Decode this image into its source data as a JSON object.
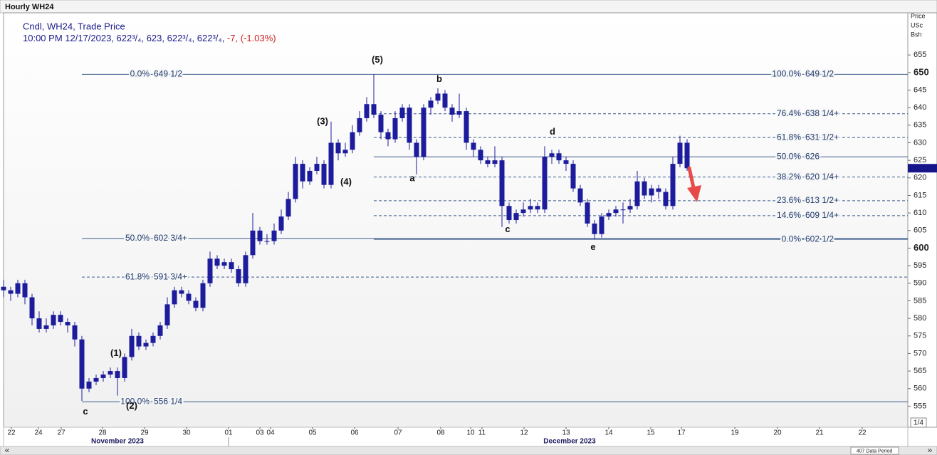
{
  "chart_data": {
    "type": "candlestick",
    "title": "Hourly WH24",
    "legend_line1": "Cndl, WH24, Trade Price",
    "legend_line2": "10:00 PM 12/17/2023, 622³/₄, 623, 622³/₄, 622³/₄, ",
    "legend_change": "-7, (-1.03%)",
    "axis_title": [
      "Price",
      "USc",
      "Bsh"
    ],
    "color": "#1c1c9c",
    "xlim": [
      0,
      254
    ],
    "ylim": [
      549,
      667
    ],
    "yticks": [
      555,
      560,
      565,
      570,
      575,
      580,
      585,
      590,
      595,
      600,
      605,
      610,
      615,
      620,
      625,
      630,
      635,
      640,
      645,
      650,
      655
    ],
    "bold_tick_step": 50,
    "xticks": [
      {
        "value": 2.2,
        "label": "22"
      },
      {
        "value": 9.8,
        "label": "24"
      },
      {
        "value": 16.2,
        "label": "27"
      },
      {
        "value": 27.8,
        "label": "28"
      },
      {
        "value": 39.6,
        "label": "29"
      },
      {
        "value": 51.4,
        "label": "30"
      },
      {
        "value": 63.2,
        "label": "01"
      },
      {
        "value": 72,
        "label": "03"
      },
      {
        "value": 75,
        "label": "04"
      },
      {
        "value": 86.8,
        "label": "05"
      },
      {
        "value": 98.6,
        "label": "06"
      },
      {
        "value": 110.8,
        "label": "07"
      },
      {
        "value": 122.8,
        "label": "08"
      },
      {
        "value": 131.2,
        "label": "10"
      },
      {
        "value": 134.4,
        "label": "11"
      },
      {
        "value": 146.2,
        "label": "12"
      },
      {
        "value": 158,
        "label": "13"
      },
      {
        "value": 170,
        "label": "14"
      },
      {
        "value": 181.8,
        "label": "15"
      },
      {
        "value": 190.4,
        "label": "17"
      },
      {
        "value": 205.4,
        "label": "19"
      },
      {
        "value": 217.4,
        "label": "20"
      },
      {
        "value": 229.2,
        "label": "21"
      },
      {
        "value": 241.2,
        "label": "22"
      }
    ],
    "months": [
      {
        "value": 32,
        "label": "November 2023"
      },
      {
        "value": 159,
        "label": "December 2023"
      }
    ],
    "x": [
      0,
      2,
      4,
      6,
      8,
      10,
      12,
      14,
      16,
      18,
      20,
      22,
      24,
      26,
      28,
      30,
      32,
      34,
      36,
      38,
      40,
      42,
      44,
      46,
      48,
      50,
      52,
      54,
      56,
      58,
      60,
      62,
      64,
      66,
      68,
      70,
      72,
      74,
      76,
      78,
      80,
      82,
      84,
      86,
      88,
      90,
      92,
      94,
      96,
      98,
      100,
      102,
      104,
      106,
      108,
      110,
      112,
      114,
      116,
      118,
      120,
      122,
      124,
      126,
      128,
      130,
      132,
      134,
      136,
      138,
      140,
      142,
      144,
      146,
      148,
      150,
      152,
      154,
      156,
      158,
      160,
      162,
      164,
      166,
      168,
      170,
      172,
      174,
      176,
      178,
      180,
      182,
      184,
      186,
      188,
      190,
      192
    ],
    "ohlc": [
      [
        589,
        591,
        586,
        588
      ],
      [
        588,
        589,
        585,
        587
      ],
      [
        587,
        591,
        586,
        590
      ],
      [
        590,
        591,
        584,
        586
      ],
      [
        586,
        587,
        578,
        580
      ],
      [
        580,
        582,
        576,
        577
      ],
      [
        577,
        580,
        576,
        578
      ],
      [
        578,
        582,
        577,
        581
      ],
      [
        581,
        582,
        578,
        579
      ],
      [
        579,
        580,
        576,
        578
      ],
      [
        578,
        579,
        572,
        574
      ],
      [
        574,
        575,
        556.5,
        560
      ],
      [
        560,
        563,
        559,
        562
      ],
      [
        562,
        564,
        561,
        563
      ],
      [
        563,
        565,
        562,
        564
      ],
      [
        564,
        566,
        563,
        565
      ],
      [
        565,
        566,
        558,
        563
      ],
      [
        563,
        570,
        562,
        569
      ],
      [
        569,
        577,
        568,
        575
      ],
      [
        575,
        576,
        571,
        572
      ],
      [
        572,
        574,
        571,
        573
      ],
      [
        573,
        576,
        572,
        575
      ],
      [
        575,
        579,
        574,
        578
      ],
      [
        578,
        586,
        577,
        584
      ],
      [
        584,
        589,
        583,
        588
      ],
      [
        588,
        589,
        586,
        587
      ],
      [
        587,
        588,
        584,
        585
      ],
      [
        585,
        586,
        582,
        583
      ],
      [
        583,
        591,
        582,
        590
      ],
      [
        590,
        599,
        589,
        597
      ],
      [
        597,
        598,
        594,
        595
      ],
      [
        595,
        597,
        594,
        596
      ],
      [
        596,
        597,
        593,
        594
      ],
      [
        594,
        595,
        589,
        590
      ],
      [
        590,
        599,
        589,
        598
      ],
      [
        598,
        610,
        597,
        605
      ],
      [
        605,
        606,
        601,
        602
      ],
      [
        602,
        604,
        601,
        602
      ],
      [
        602,
        607,
        601,
        605
      ],
      [
        605,
        611,
        604,
        609
      ],
      [
        609,
        616,
        608,
        614
      ],
      [
        614,
        626,
        613,
        624
      ],
      [
        624,
        625,
        617,
        619
      ],
      [
        619,
        623,
        618,
        622
      ],
      [
        622,
        626,
        621,
        624
      ],
      [
        624,
        625,
        617,
        618
      ],
      [
        618,
        636,
        617,
        630
      ],
      [
        630,
        631,
        625,
        627
      ],
      [
        627,
        630,
        626,
        628
      ],
      [
        628,
        635,
        627,
        633
      ],
      [
        633,
        639,
        632,
        637
      ],
      [
        637,
        643,
        636,
        641
      ],
      [
        641,
        649.5,
        637,
        638
      ],
      [
        638,
        639,
        631,
        633
      ],
      [
        633,
        634,
        629,
        631
      ],
      [
        631,
        639,
        630,
        637
      ],
      [
        637,
        641,
        636,
        640
      ],
      [
        640,
        641,
        628,
        630
      ],
      [
        630,
        631,
        621,
        626
      ],
      [
        626,
        641,
        625,
        640
      ],
      [
        640,
        643,
        638,
        642
      ],
      [
        642,
        645.5,
        641,
        644
      ],
      [
        644,
        645,
        639,
        640
      ],
      [
        640,
        641,
        636,
        638
      ],
      [
        638,
        644,
        637,
        639
      ],
      [
        639,
        640,
        628,
        630
      ],
      [
        630,
        631,
        626,
        628
      ],
      [
        628,
        629,
        624,
        625
      ],
      [
        625,
        626,
        623,
        624
      ],
      [
        624,
        629,
        623,
        625
      ],
      [
        625,
        626,
        606,
        612
      ],
      [
        612,
        613,
        607,
        608
      ],
      [
        608,
        611,
        607,
        610
      ],
      [
        610,
        613,
        609,
        611
      ],
      [
        611,
        614,
        610,
        612
      ],
      [
        612,
        613,
        610,
        611
      ],
      [
        611,
        629,
        610,
        626
      ],
      [
        626,
        628,
        624,
        627
      ],
      [
        627,
        628,
        624,
        625
      ],
      [
        625,
        626,
        622,
        624
      ],
      [
        624,
        625,
        616,
        617
      ],
      [
        617,
        618,
        612,
        613
      ],
      [
        613,
        614,
        606,
        607
      ],
      [
        607,
        608,
        602.5,
        604
      ],
      [
        604,
        610,
        603,
        609
      ],
      [
        609,
        611,
        608,
        610
      ],
      [
        610,
        612,
        609,
        611
      ],
      [
        611,
        613,
        607,
        611
      ],
      [
        611,
        614,
        610,
        612
      ],
      [
        612,
        622,
        611,
        619
      ],
      [
        619,
        620,
        614,
        615
      ],
      [
        615,
        618,
        613,
        617
      ],
      [
        617,
        618,
        614,
        616
      ],
      [
        616,
        617,
        611,
        612
      ],
      [
        612,
        626,
        611,
        624
      ],
      [
        624,
        632,
        623,
        630
      ],
      [
        630,
        631,
        622,
        622.75
      ]
    ],
    "last_price": 622.75,
    "fib_groups": [
      {
        "x_from": 22,
        "levels": [
          {
            "pct": "0.0%",
            "label": "649 1/2",
            "value": 649.5,
            "x_to": 104,
            "dashed": false
          },
          {
            "pct": "50.0%",
            "label": "602 3/4+",
            "value": 602.75,
            "x_to": 254,
            "dashed": false
          },
          {
            "pct": "61.8%",
            "label": "591 3/4+",
            "value": 591.75,
            "x_to": 254,
            "dashed": true
          },
          {
            "pct": "100.0%",
            "label": "556 1/4",
            "value": 556.25,
            "x_to": 254,
            "dashed": false
          }
        ]
      },
      {
        "x_from": 104,
        "levels": [
          {
            "pct": "100.0%",
            "label": "649 1/2",
            "value": 649.5,
            "x_to": 254,
            "dashed": false
          },
          {
            "pct": "76.4%",
            "label": "638 1/4+",
            "value": 638.25,
            "x_to": 254,
            "dashed": true
          },
          {
            "pct": "61.8%",
            "label": "631 1/2+",
            "value": 631.5,
            "x_to": 254,
            "dashed": true
          },
          {
            "pct": "50.0%",
            "label": "626",
            "value": 626,
            "x_to": 254,
            "dashed": false
          },
          {
            "pct": "38.2%",
            "label": "620 1/4+",
            "value": 620.25,
            "x_to": 254,
            "dashed": true
          },
          {
            "pct": "23.6%",
            "label": "613 1/2+",
            "value": 613.5,
            "x_to": 254,
            "dashed": true
          },
          {
            "pct": "14.6%",
            "label": "609 1/4+",
            "value": 609.25,
            "x_to": 254,
            "dashed": true
          },
          {
            "pct": "0.0%",
            "label": "602 1/2",
            "value": 602.5,
            "x_to": 254,
            "dashed": false
          }
        ]
      }
    ],
    "waves": [
      {
        "text": "(5)",
        "x": 105,
        "y": 653.5
      },
      {
        "text": "b",
        "x": 122.4,
        "y": 648
      },
      {
        "text": "(3)",
        "x": 89.6,
        "y": 636
      },
      {
        "text": "(4)",
        "x": 96.2,
        "y": 618.7
      },
      {
        "text": "a",
        "x": 114.8,
        "y": 619.7
      },
      {
        "text": "d",
        "x": 154.2,
        "y": 633
      },
      {
        "text": "c",
        "x": 141.6,
        "y": 605.3
      },
      {
        "text": "e",
        "x": 165.6,
        "y": 600.2
      },
      {
        "text": "(1)",
        "x": 31.6,
        "y": 570
      },
      {
        "text": "(2)",
        "x": 36,
        "y": 555
      },
      {
        "text": "c",
        "x": 23,
        "y": 553.3
      }
    ],
    "page_indicator": "1/4",
    "data_period": "407 Data Period"
  }
}
